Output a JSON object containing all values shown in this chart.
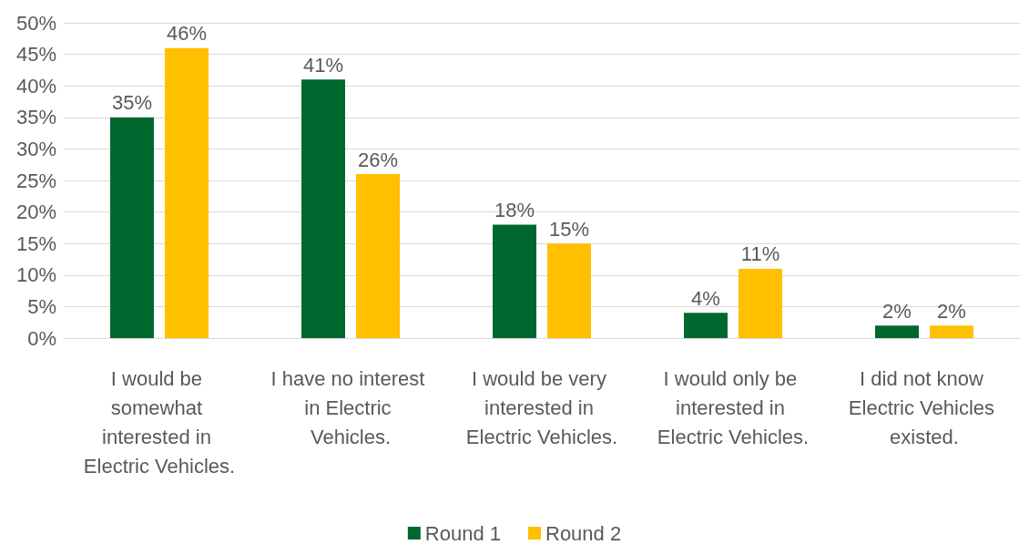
{
  "chart_data": {
    "type": "bar",
    "categories": [
      "I would be somewhat interested in Electric Vehicles.",
      "I have no interest in Electric Vehicles.",
      "I would be very interested in Electric Vehicles.",
      "I would only be interested in Electric Vehicles.",
      "I did not know Electric Vehicles existed."
    ],
    "series": [
      {
        "name": "Round 1",
        "color": "#00682f",
        "values": [
          35,
          41,
          18,
          4,
          2
        ],
        "value_labels": [
          "35%",
          "41%",
          "18%",
          "4%",
          "2%"
        ]
      },
      {
        "name": "Round 2",
        "color": "#ffc000",
        "values": [
          46,
          26,
          15,
          11,
          2
        ],
        "value_labels": [
          "46%",
          "26%",
          "15%",
          "11%",
          "2%"
        ]
      }
    ],
    "ylim": [
      0,
      50
    ],
    "yticks": [
      {
        "value": 0,
        "label": "0%"
      },
      {
        "value": 5,
        "label": "5%"
      },
      {
        "value": 10,
        "label": "10%"
      },
      {
        "value": 15,
        "label": "15%"
      },
      {
        "value": 20,
        "label": "20%"
      },
      {
        "value": 25,
        "label": "25%"
      },
      {
        "value": 30,
        "label": "30%"
      },
      {
        "value": 35,
        "label": "35%"
      },
      {
        "value": 40,
        "label": "40%"
      },
      {
        "value": 45,
        "label": "45%"
      },
      {
        "value": 50,
        "label": "50%"
      }
    ],
    "grid": "y",
    "legend": "bottom"
  }
}
